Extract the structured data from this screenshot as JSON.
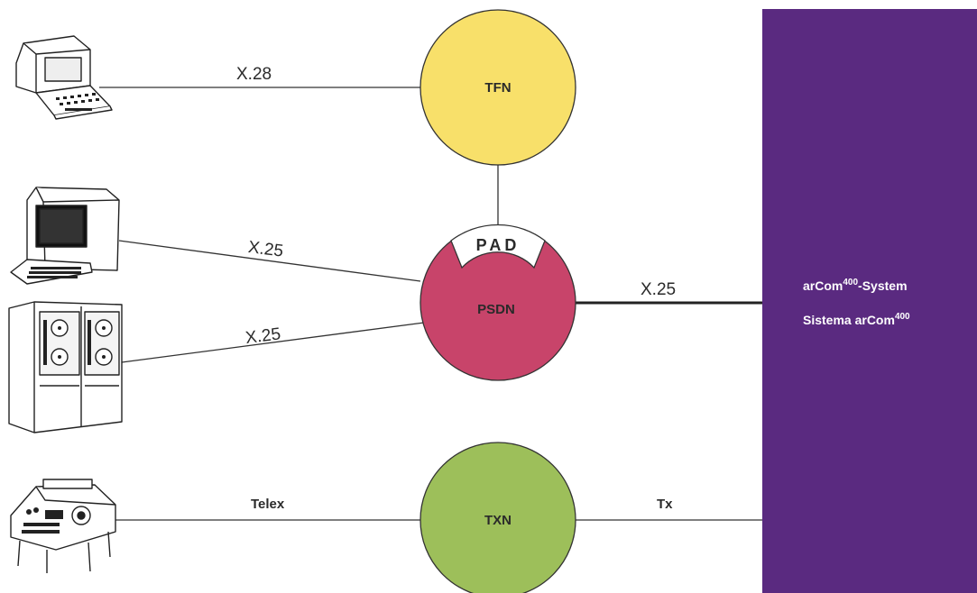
{
  "nodes": {
    "tfn": {
      "label": "TFN",
      "color": "#f8e06a"
    },
    "psdn": {
      "label": "PSDN",
      "color": "#c8446a"
    },
    "pad": {
      "label": "PAD"
    },
    "txn": {
      "label": "TXN",
      "color": "#9dbf5a"
    }
  },
  "links": {
    "terminal_tfn": "X.28",
    "terminal_psdn": "X.25",
    "mainframe_psdn": "X.25",
    "psdn_system": "X.25",
    "telex_txn": "Telex",
    "txn_system": "Tx"
  },
  "system": {
    "line1_prefix": "arCom",
    "line1_sup": "400",
    "line1_suffix": "-System",
    "line2_prefix": "Sistema arCom",
    "line2_sup": "400",
    "color": "#5a2a80"
  },
  "devices": {
    "video_terminal": "terminal-icon",
    "workstation": "workstation-icon",
    "mainframe": "mainframe-icon",
    "telex_machine": "telex-machine-icon"
  }
}
